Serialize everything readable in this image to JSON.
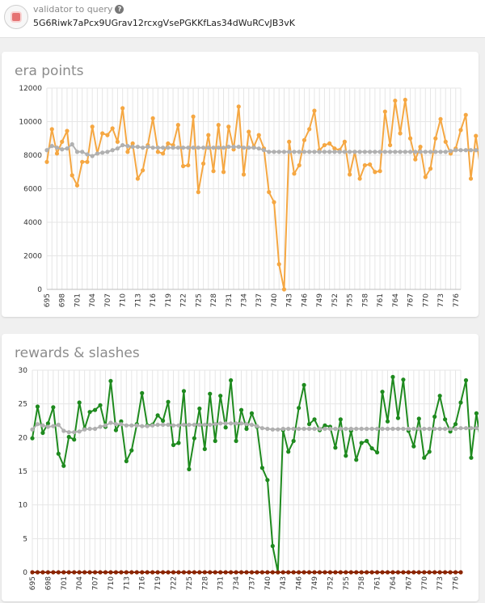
{
  "header": {
    "label": "validator to query",
    "help_icon": "question-icon",
    "avatar_icon": "identicon-icon",
    "address": "5G6Riwk7aPcx9UGrav12rcxgVsePGKKfLas34dWuRCvJB3vK"
  },
  "colors": {
    "era_points": "#f5a742",
    "average": "#b0b0b0",
    "rewards": "#1e8a1e",
    "slashes": "#8b2500",
    "grid": "#e6e6e6"
  },
  "chart_data": [
    {
      "type": "line",
      "title": "era points",
      "x_start": 695,
      "x_end": 777,
      "tick_labels": [
        "695",
        "698",
        "701",
        "704",
        "707",
        "710",
        "713",
        "716",
        "719",
        "722",
        "725",
        "728",
        "731",
        "734",
        "737",
        "740",
        "743",
        "746",
        "749",
        "752",
        "755",
        "758",
        "761",
        "764",
        "767",
        "770",
        "773",
        "776"
      ],
      "y_ticks": [
        0,
        2000,
        4000,
        6000,
        8000,
        10000,
        12000
      ],
      "ylim": [
        0,
        12000
      ],
      "series": [
        {
          "name": "era points",
          "color": "#f5a742",
          "values": [
            7600,
            9550,
            8100,
            8800,
            9450,
            6800,
            6200,
            7600,
            7600,
            9700,
            8100,
            9300,
            9200,
            9600,
            8800,
            10800,
            8200,
            8700,
            6600,
            7100,
            8600,
            10200,
            8200,
            8100,
            8700,
            8600,
            9800,
            7350,
            7400,
            10300,
            5800,
            7500,
            9200,
            7050,
            9800,
            7000,
            9700,
            8350,
            10900,
            6850,
            9400,
            8500,
            9200,
            8400,
            5800,
            5200,
            1500,
            0,
            8800,
            6900,
            7400,
            8900,
            9550,
            10650,
            8300,
            8600,
            8700,
            8400,
            8300,
            8800,
            6850,
            8200,
            6600,
            7400,
            7450,
            7000,
            7050,
            10600,
            8600,
            11250,
            9300,
            11300,
            9000,
            7750,
            8500,
            6700,
            7200,
            9000,
            10150,
            8800,
            8100,
            8400,
            9500,
            10400,
            6600,
            9150,
            7000
          ],
          "markers": true
        },
        {
          "name": "average",
          "color": "#b0b0b0",
          "values": [
            8300,
            8550,
            8450,
            8350,
            8400,
            8650,
            8200,
            8200,
            8050,
            7950,
            8100,
            8150,
            8200,
            8300,
            8400,
            8600,
            8550,
            8500,
            8500,
            8450,
            8500,
            8450,
            8450,
            8450,
            8450,
            8450,
            8450,
            8450,
            8450,
            8450,
            8450,
            8450,
            8450,
            8450,
            8450,
            8450,
            8500,
            8500,
            8500,
            8450,
            8450,
            8450,
            8400,
            8300,
            8200,
            8200,
            8200,
            8200,
            8200,
            8200,
            8200,
            8200,
            8200,
            8200,
            8200,
            8200,
            8200,
            8200,
            8200,
            8200,
            8200,
            8200,
            8200,
            8200,
            8200,
            8200,
            8200,
            8200,
            8200,
            8200,
            8200,
            8200,
            8200,
            8200,
            8200,
            8200,
            8200,
            8200,
            8200,
            8200,
            8250,
            8300,
            8300,
            8300,
            8300,
            8300,
            8300
          ],
          "markers": true
        }
      ]
    },
    {
      "type": "line",
      "title": "rewards & slashes",
      "x_start": 695,
      "x_end": 777,
      "tick_labels": [
        "695",
        "698",
        "701",
        "704",
        "707",
        "710",
        "713",
        "716",
        "719",
        "722",
        "725",
        "728",
        "731",
        "734",
        "737",
        "740",
        "743",
        "746",
        "749",
        "752",
        "755",
        "758",
        "761",
        "764",
        "767",
        "770",
        "773",
        "776"
      ],
      "y_ticks": [
        0,
        5,
        10,
        15,
        20,
        25,
        30
      ],
      "ylim": [
        0,
        30
      ],
      "series": [
        {
          "name": "rewards",
          "color": "#1e8a1e",
          "values": [
            19.9,
            24.6,
            20.7,
            22.1,
            24.5,
            17.6,
            15.8,
            20.1,
            19.7,
            25.2,
            21.3,
            23.8,
            24.1,
            24.8,
            21.6,
            28.4,
            21.1,
            22.4,
            16.5,
            18.1,
            22.0,
            26.6,
            21.8,
            21.9,
            23.3,
            22.5,
            25.3,
            18.9,
            19.2,
            26.9,
            15.3,
            19.9,
            24.3,
            18.3,
            26.5,
            19.5,
            26.2,
            21.5,
            28.5,
            19.5,
            24.1,
            21.3,
            23.6,
            21.6,
            15.5,
            13.7,
            3.9,
            0.0,
            21.1,
            17.9,
            19.5,
            24.4,
            27.8,
            22.0,
            22.7,
            21.1,
            21.8,
            21.6,
            18.5,
            22.7,
            17.3,
            21.0,
            16.7,
            19.2,
            19.5,
            18.4,
            17.8,
            26.8,
            22.4,
            29.0,
            22.9,
            28.6,
            21.0,
            18.7,
            22.8,
            17.0,
            17.9,
            23.1,
            26.2,
            22.7,
            20.9,
            22.0,
            25.2,
            28.5,
            17.0,
            23.6,
            18.3
          ],
          "markers": true
        },
        {
          "name": "average",
          "color": "#b0b0b0",
          "values": [
            21.2,
            22.0,
            21.8,
            21.6,
            21.7,
            21.9,
            21.0,
            20.8,
            20.8,
            20.9,
            21.2,
            21.3,
            21.3,
            21.6,
            21.8,
            22.2,
            22.0,
            22.0,
            21.8,
            21.8,
            21.8,
            21.7,
            21.7,
            21.8,
            21.9,
            21.9,
            21.9,
            21.8,
            21.8,
            21.9,
            21.9,
            21.9,
            21.9,
            21.9,
            21.9,
            22.0,
            22.1,
            22.1,
            22.1,
            22.1,
            22.1,
            22.0,
            21.9,
            21.7,
            21.4,
            21.3,
            21.2,
            21.2,
            21.3,
            21.3,
            21.3,
            21.3,
            21.3,
            21.3,
            21.3,
            21.3,
            21.3,
            21.3,
            21.3,
            21.3,
            21.3,
            21.3,
            21.3,
            21.3,
            21.3,
            21.3,
            21.3,
            21.3,
            21.3,
            21.3,
            21.3,
            21.3,
            21.3,
            21.3,
            21.3,
            21.3,
            21.3,
            21.3,
            21.3,
            21.3,
            21.3,
            21.3,
            21.4,
            21.4,
            21.4,
            21.4,
            21.4
          ],
          "markers": true
        },
        {
          "name": "slashes",
          "color": "#8b2500",
          "constant": 0,
          "markers": true
        }
      ]
    }
  ]
}
